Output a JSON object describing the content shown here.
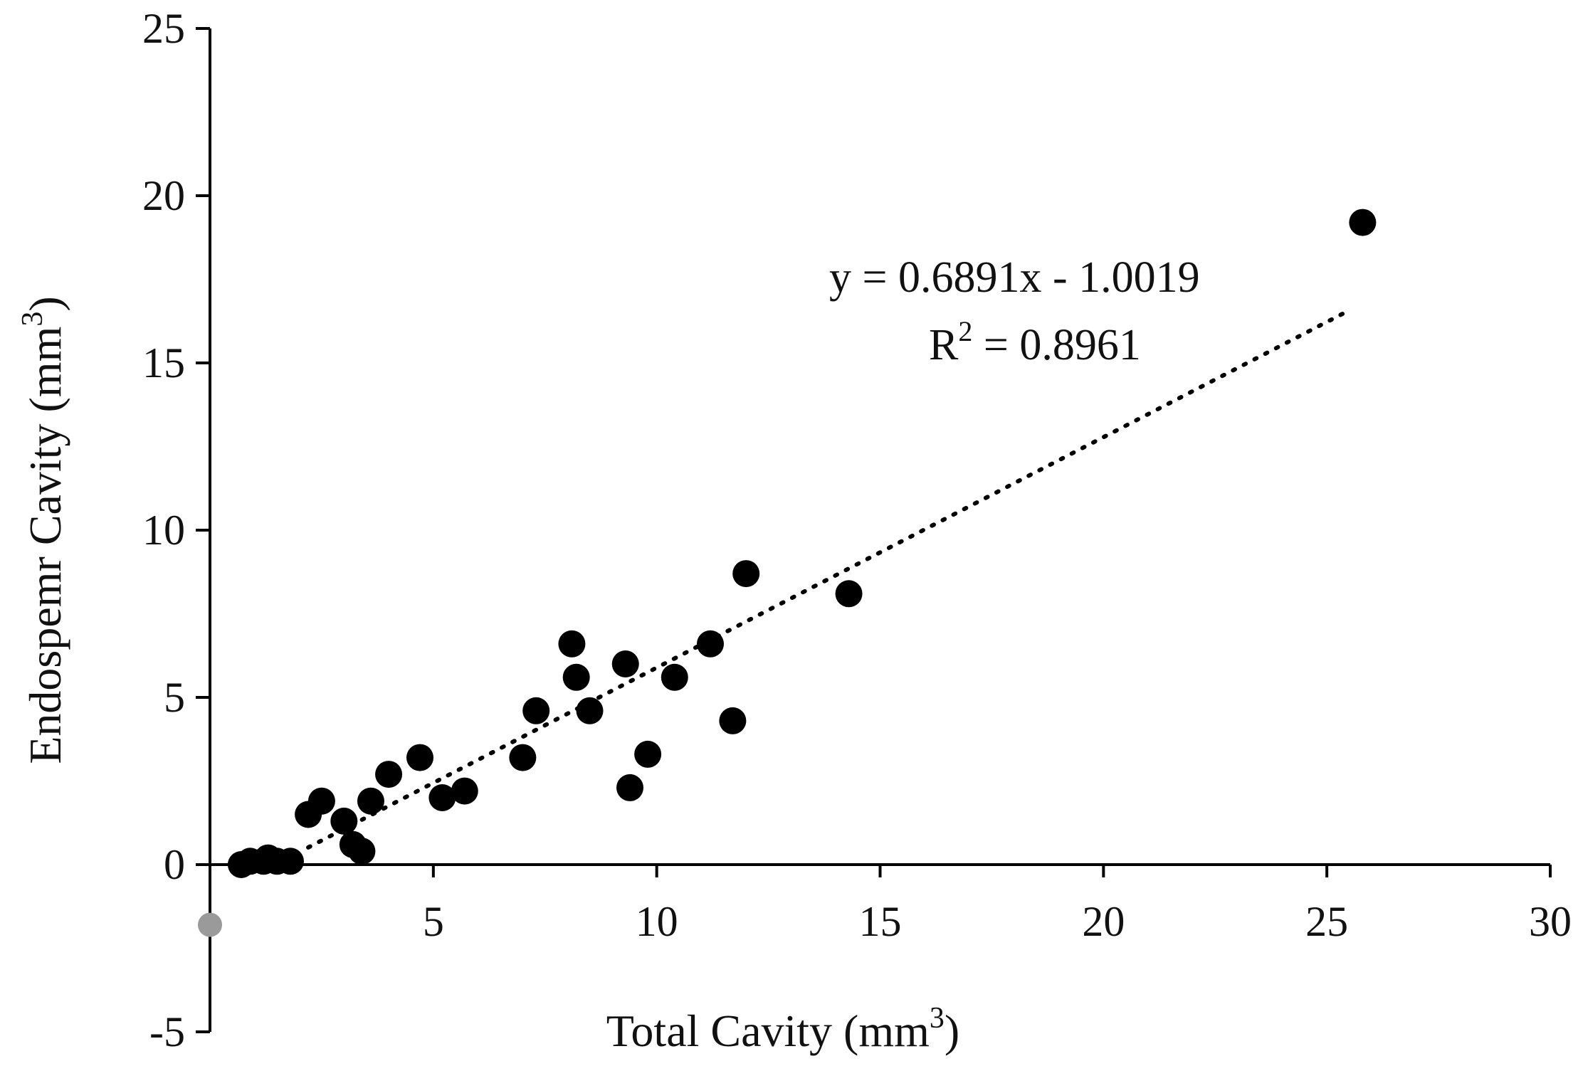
{
  "chart_data": {
    "type": "scatter",
    "xlabel": "Total Cavity (mm",
    "xlabel_sup": "3",
    "xlabel_end": ")",
    "ylabel": "Endospemr Cavity (mm",
    "ylabel_sup": "3",
    "ylabel_end": ")",
    "xlim": [
      0,
      30
    ],
    "ylim": [
      -5,
      25
    ],
    "xticks": [
      0,
      5,
      10,
      15,
      20,
      25,
      30
    ],
    "yticks": [
      -5,
      0,
      5,
      10,
      15,
      20,
      25
    ],
    "grid": false,
    "marker_color": "#000000",
    "points": [
      {
        "x": 0.7,
        "y": 0.0
      },
      {
        "x": 0.9,
        "y": 0.1
      },
      {
        "x": 1.2,
        "y": 0.1
      },
      {
        "x": 1.3,
        "y": 0.2
      },
      {
        "x": 1.5,
        "y": 0.1
      },
      {
        "x": 1.8,
        "y": 0.1
      },
      {
        "x": 2.2,
        "y": 1.5
      },
      {
        "x": 2.5,
        "y": 1.9
      },
      {
        "x": 3.0,
        "y": 1.3
      },
      {
        "x": 3.2,
        "y": 0.6
      },
      {
        "x": 3.4,
        "y": 0.4
      },
      {
        "x": 3.6,
        "y": 1.9
      },
      {
        "x": 4.0,
        "y": 2.7
      },
      {
        "x": 4.7,
        "y": 3.2
      },
      {
        "x": 5.2,
        "y": 2.0
      },
      {
        "x": 5.7,
        "y": 2.2
      },
      {
        "x": 7.0,
        "y": 3.2
      },
      {
        "x": 7.3,
        "y": 4.6
      },
      {
        "x": 8.1,
        "y": 6.6
      },
      {
        "x": 8.2,
        "y": 5.6
      },
      {
        "x": 8.5,
        "y": 4.6
      },
      {
        "x": 9.3,
        "y": 6.0
      },
      {
        "x": 9.4,
        "y": 2.3
      },
      {
        "x": 9.8,
        "y": 3.3
      },
      {
        "x": 10.4,
        "y": 5.6
      },
      {
        "x": 11.2,
        "y": 6.6
      },
      {
        "x": 11.7,
        "y": 4.3
      },
      {
        "x": 12.0,
        "y": 8.7
      },
      {
        "x": 14.3,
        "y": 8.1
      },
      {
        "x": 25.8,
        "y": 19.2
      }
    ],
    "origin_marker": {
      "x": 0,
      "y": -1.8,
      "color": "#9a9a9a"
    },
    "trendline": {
      "slope": 0.6891,
      "intercept": -1.0019,
      "x_start": 2.2,
      "x_end": 25.5
    },
    "annotation": {
      "equation": "y = 0.6891x   - 1.0019",
      "r2_prefix": "R",
      "r2_sup": "2",
      "r2_rest": " = 0.8961"
    }
  }
}
